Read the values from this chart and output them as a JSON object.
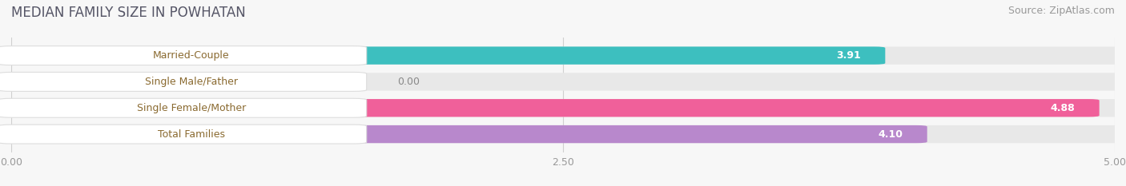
{
  "title": "MEDIAN FAMILY SIZE IN POWHATAN",
  "source": "Source: ZipAtlas.com",
  "categories": [
    "Married-Couple",
    "Single Male/Father",
    "Single Female/Mother",
    "Total Families"
  ],
  "values": [
    3.91,
    0.0,
    4.88,
    4.1
  ],
  "bar_colors": [
    "#3dbfbf",
    "#a8b8e8",
    "#f0609a",
    "#b888cc"
  ],
  "xlim": [
    0,
    5.0
  ],
  "xticks": [
    0.0,
    2.5,
    5.0
  ],
  "xtick_labels": [
    "0.00",
    "2.50",
    "5.00"
  ],
  "background_color": "#f7f7f7",
  "bar_height": 0.58,
  "title_fontsize": 12,
  "label_fontsize": 9,
  "value_fontsize": 9,
  "source_fontsize": 9,
  "label_text_color": "#8a6a30"
}
